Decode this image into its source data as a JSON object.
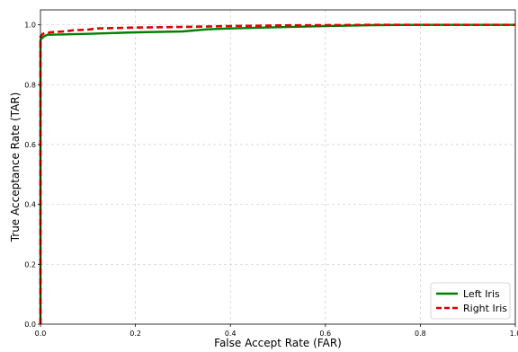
{
  "chart_data": {
    "type": "line",
    "title": "",
    "xlabel": "False Accept Rate (FAR)",
    "ylabel": "True Acceptance Rate (TAR)",
    "xlim": [
      0.0,
      1.0
    ],
    "ylim": [
      0.0,
      1.05
    ],
    "xticks": [
      0.0,
      0.2,
      0.4,
      0.6,
      0.8,
      1.0
    ],
    "yticks": [
      0.0,
      0.2,
      0.4,
      0.6,
      0.8,
      1.0
    ],
    "xtick_labels": [
      "0.0",
      "0.2",
      "0.4",
      "0.6",
      "0.8",
      "1.0"
    ],
    "ytick_labels": [
      "0.0",
      "0.2",
      "0.4",
      "0.6",
      "0.8",
      "1.0"
    ],
    "grid": true,
    "legend_position": "bottom-right",
    "series": [
      {
        "name": "Left Iris",
        "color": "#008000",
        "style": "solid",
        "x": [
          0.0,
          0.0,
          0.003,
          0.008,
          0.015,
          0.05,
          0.1,
          0.2,
          0.3,
          0.35,
          0.4,
          0.5,
          0.6,
          0.7,
          0.8,
          0.9,
          1.0
        ],
        "y": [
          0.0,
          0.95,
          0.955,
          0.962,
          0.967,
          0.968,
          0.97,
          0.975,
          0.978,
          0.985,
          0.988,
          0.992,
          0.996,
          0.999,
          1.0,
          1.0,
          1.0
        ]
      },
      {
        "name": "Right Iris",
        "color": "#e00000",
        "style": "dashed",
        "x": [
          0.0,
          0.0,
          0.005,
          0.02,
          0.05,
          0.07,
          0.1,
          0.12,
          0.2,
          0.3,
          0.4,
          0.5,
          0.6,
          0.7,
          0.8,
          0.9,
          1.0
        ],
        "y": [
          0.0,
          0.96,
          0.97,
          0.975,
          0.978,
          0.982,
          0.984,
          0.988,
          0.991,
          0.993,
          0.996,
          0.998,
          0.999,
          1.0,
          1.0,
          1.0,
          1.0
        ]
      }
    ]
  }
}
